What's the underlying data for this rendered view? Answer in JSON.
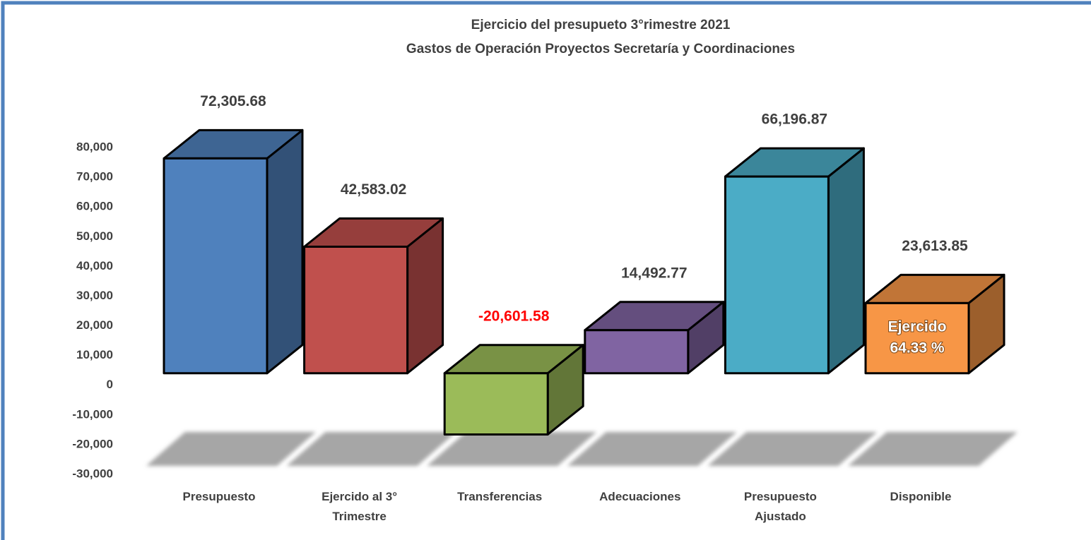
{
  "chart_data": {
    "type": "bar3d",
    "title": "Ejercicio del presupueto 3°rimestre 2021",
    "subtitle": "Gastos de Operación Proyectos Secretaría y Coordinaciones",
    "categories": [
      "Presupuesto",
      "Ejercido al 3° Trimestre",
      "Transferencias",
      "Adecuaciones",
      "Presupuesto Ajustado",
      "Disponible"
    ],
    "values": [
      72305.68,
      42583.02,
      -20601.58,
      14492.77,
      66196.87,
      23613.85
    ],
    "value_labels": [
      "72,305.68",
      "42,583.02",
      "-20,601.58",
      "14,492.77",
      "66,196.87",
      "23,613.85"
    ],
    "colors": [
      "#4f81bd",
      "#c0504d",
      "#9bbb59",
      "#8064a2",
      "#4bacc6",
      "#f79646"
    ],
    "label_color": "#404040",
    "negative_label_color": "#ff0000",
    "ylim": [
      -30000,
      80000
    ],
    "yticks": [
      {
        "value": -30000,
        "label": "-30,000"
      },
      {
        "value": -20000,
        "label": "-20,000"
      },
      {
        "value": -10000,
        "label": "-10,000"
      },
      0,
      {
        "value": 10000,
        "label": "10,000"
      },
      {
        "value": 20000,
        "label": "20,000"
      },
      {
        "value": 30000,
        "label": "30,000"
      },
      {
        "value": 40000,
        "label": "40,000"
      },
      {
        "value": 50000,
        "label": "50,000"
      },
      {
        "value": 60000,
        "label": "60,000"
      },
      {
        "value": 70000,
        "label": "70,000"
      },
      {
        "value": 80000,
        "label": "80,000"
      }
    ],
    "annotation": [
      "Ejercido",
      "64.33 %"
    ]
  }
}
